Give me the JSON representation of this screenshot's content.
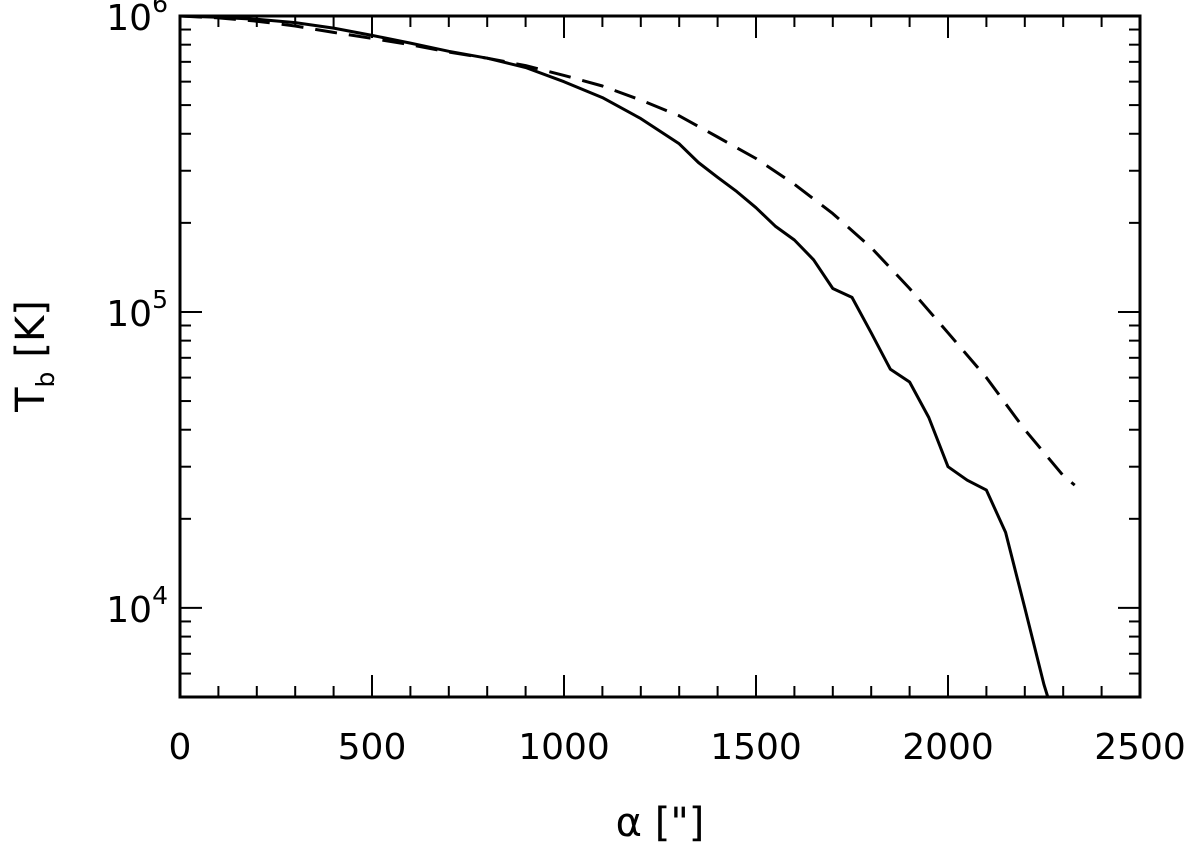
{
  "chart_data": {
    "type": "line",
    "xlabel": "α [\"]",
    "ylabel": "T",
    "ylabel_subscript": "b",
    "ylabel_unit": "[K]",
    "xlim": [
      0,
      2500
    ],
    "ylim": [
      5000,
      1000000
    ],
    "yscale": "log",
    "grid": false,
    "x_ticks": [
      {
        "value": 0,
        "label": "0"
      },
      {
        "value": 500,
        "label": "500"
      },
      {
        "value": 1000,
        "label": "1000"
      },
      {
        "value": 1500,
        "label": "1500"
      },
      {
        "value": 2000,
        "label": "2000"
      },
      {
        "value": 2500,
        "label": "2500"
      }
    ],
    "y_ticks": [
      {
        "value": 1000000,
        "base": "10",
        "exp": "6"
      },
      {
        "value": 100000,
        "base": "10",
        "exp": "5"
      },
      {
        "value": 10000,
        "base": "10",
        "exp": "4"
      }
    ],
    "series": [
      {
        "style": "solid",
        "color": "#000000",
        "x": [
          0,
          100,
          200,
          300,
          400,
          500,
          600,
          700,
          800,
          900,
          1000,
          1100,
          1200,
          1300,
          1350,
          1400,
          1450,
          1500,
          1550,
          1600,
          1650,
          1700,
          1750,
          1800,
          1850,
          1900,
          1950,
          2000,
          2050,
          2100,
          2150,
          2200,
          2250,
          2260
        ],
        "y": [
          1000000,
          990000,
          975000,
          950000,
          910000,
          860000,
          810000,
          760000,
          720000,
          670000,
          600000,
          530000,
          450000,
          370000,
          320000,
          285000,
          255000,
          225000,
          195000,
          175000,
          150000,
          120000,
          112000,
          85000,
          64000,
          58000,
          44000,
          30000,
          27000,
          25000,
          18000,
          10000,
          5500,
          5000
        ]
      },
      {
        "style": "dashed",
        "color": "#000000",
        "x": [
          0,
          100,
          200,
          300,
          400,
          500,
          600,
          700,
          800,
          900,
          1000,
          1100,
          1200,
          1300,
          1400,
          1500,
          1600,
          1700,
          1800,
          1900,
          2000,
          2100,
          2200,
          2300,
          2330
        ],
        "y": [
          1000000,
          985000,
          960000,
          925000,
          880000,
          840000,
          800000,
          755000,
          720000,
          680000,
          630000,
          580000,
          520000,
          460000,
          390000,
          330000,
          270000,
          215000,
          165000,
          120000,
          85000,
          60000,
          40000,
          28000,
          26000
        ]
      }
    ]
  }
}
